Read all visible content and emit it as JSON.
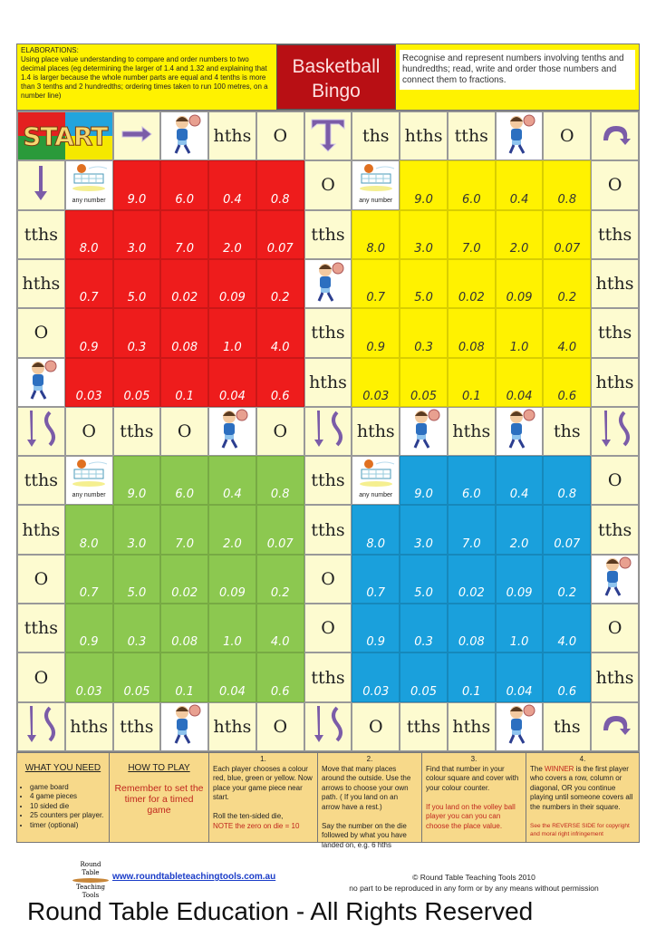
{
  "header": {
    "elaborations": "ELABORATIONS:",
    "elaborations_text": "Using place value understanding to compare and order numbers to two decimal places (eg determining the larger of 1.4 and 1.32 and explaining that 1.4 is larger because the whole number parts are equal and 4 tenths is more than 3 tenths and 2 hundredths; ordering times taken to run 100 metres, on a number line)",
    "title_line1": "Basketball",
    "title_line2": "Bingo",
    "description": "Recognise and represent numbers involving tenths and hundredths; read, write and order those numbers and connect them to fractions."
  },
  "colors": {
    "red": "#ee1c1c",
    "yellow": "#fff200",
    "green": "#8cc850",
    "blue": "#1aa0dc",
    "track": "#fdfbd0",
    "title_bg": "#b80f14"
  },
  "board": {
    "start_label": "START",
    "any_number": "any number",
    "square_values": [
      [
        "@net",
        "9.0",
        "6.0",
        "0.4",
        "0.8"
      ],
      [
        "8.0",
        "3.0",
        "7.0",
        "2.0",
        "0.07"
      ],
      [
        "0.7",
        "5.0",
        "0.02",
        "0.09",
        "0.2"
      ],
      [
        "0.9",
        "0.3",
        "0.08",
        "1.0",
        "4.0"
      ],
      [
        "0.03",
        "0.05",
        "0.1",
        "0.04",
        "0.6"
      ]
    ],
    "squares": [
      {
        "color": "red",
        "row": 1,
        "col": 1
      },
      {
        "color": "yellow",
        "row": 1,
        "col": 7
      },
      {
        "color": "green",
        "row": 7,
        "col": 1
      },
      {
        "color": "blue",
        "row": 7,
        "col": 7
      }
    ],
    "top_row": [
      "@start",
      "@arrow-right",
      "@player",
      "hths",
      "O",
      "@t-junction-arrow",
      "ths",
      "hths",
      "tths",
      "@player",
      "O",
      "@u-turn-arrow"
    ],
    "middle_row": [
      "@split-arrows",
      "O",
      "tths",
      "O",
      "@player",
      "O",
      "@split-arrows",
      "hths",
      "@player",
      "hths",
      "@player",
      "ths",
      "@split-arrows"
    ],
    "bottom_row": [
      "@split-arrows",
      "hths",
      "tths",
      "@player",
      "hths",
      "O",
      "@split-arrows",
      "O",
      "tths",
      "hths",
      "@player",
      "ths",
      "@u-turn-arrow"
    ],
    "left_col_top": [
      "@arrow-down",
      "tths",
      "hths",
      "O",
      "@player"
    ],
    "center_col_top": [
      "O",
      "tths",
      "@player",
      "tths",
      "hths"
    ],
    "right_col_top": [
      "O",
      "tths",
      "hths",
      "tths",
      "hths"
    ],
    "left_col_bottom": [
      "tths",
      "hths",
      "O",
      "tths",
      "O"
    ],
    "center_col_bottom": [
      "tths",
      "tths",
      "O",
      "O",
      "tths"
    ],
    "right_col_bottom": [
      "O",
      "tths",
      "@player",
      "O",
      "hths"
    ]
  },
  "info": {
    "need_title": "WHAT YOU NEED",
    "need_items": [
      "game board",
      "4 game pieces",
      "10 sided die",
      "25 counters per player.",
      "timer (optional)"
    ],
    "play_title": "HOW TO PLAY",
    "play_note": "Remember to set the timer for a timed game",
    "step1_num": "1.",
    "step1_text": "Each player chooses a colour red, blue, green or yellow. Now place your game piece near start.",
    "step1_text2": "Roll the ten-sided die,",
    "step1_note": "NOTE the zero on die = 10",
    "step2_num": "2.",
    "step2_text": "Move that many places around the outside. Use the arrows to choose your own path. ( If you land on an arrow have a rest.)",
    "step2_text2": "Say the number on the die followed by what you have landed on, e.g. 6 hths",
    "step3_num": "3.",
    "step3_text": "Find that number in your colour square and cover with your colour counter.",
    "step3_note": "If you land on the volley ball player you can you can choose the place value.",
    "step4_num": "4.",
    "step4_pre": "The ",
    "step4_winner": "WINNER",
    "step4_text": " is the first player who covers a row, column or diagonal, OR you continue playing until someone covers all the numbers in their square.",
    "step4_note": "See the REVERSE SIDE for copyright and moral right infringement"
  },
  "footer": {
    "logo_text": "Round Table Teaching Tools",
    "url": "www.roundtableteachingtools.com.au",
    "copyright": "© Round Table Teaching Tools 2010",
    "notice": "no part to be reproduced in any form or by any means without permission"
  },
  "watermark": {
    "small": "Round Table Education - All Rights Reserved",
    "large": "Round Table Education - All Rights Reserved"
  }
}
